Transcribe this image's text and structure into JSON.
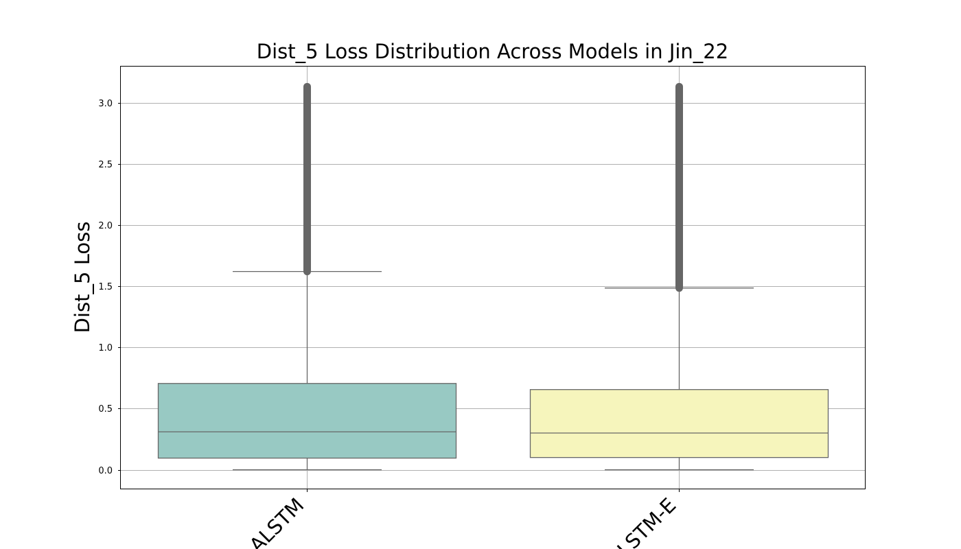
{
  "chart_data": {
    "type": "box",
    "title": "Dist_5 Loss Distribution Across Models in Jin_22",
    "xlabel": "",
    "ylabel": "Dist_5 Loss",
    "categories": [
      "ALSTM",
      "ALSTM-E"
    ],
    "ylim": [
      -0.155,
      3.3
    ],
    "yticks": [
      "0.0",
      "0.5",
      "1.0",
      "1.5",
      "2.0",
      "2.5",
      "3.0"
    ],
    "grid": true,
    "boxes": [
      {
        "name": "ALSTM",
        "color": "#98c9c3",
        "min": 0.0,
        "q1": 0.095,
        "median": 0.31,
        "q3": 0.705,
        "whisker_high": 1.62,
        "outliers_from": 1.62,
        "outliers_to": 3.13
      },
      {
        "name": "ALSTM-E",
        "color": "#f6f5bc",
        "min": 0.0,
        "q1": 0.1,
        "median": 0.3,
        "q3": 0.655,
        "whisker_high": 1.485,
        "outliers_from": 1.485,
        "outliers_to": 3.13
      }
    ],
    "line_color": "#666666",
    "outlier_color": "#666666"
  }
}
